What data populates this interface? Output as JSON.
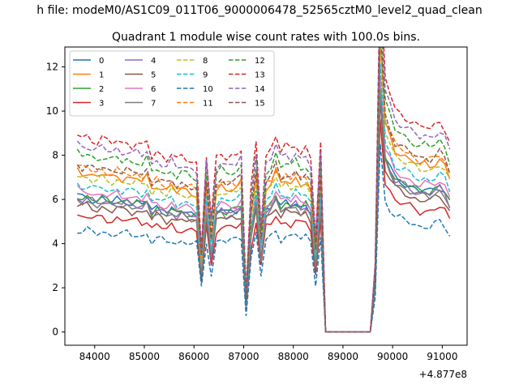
{
  "figure": {
    "suptitle": "h file: modeM0/AS1C09_011T06_9000006478_52565cztM0_level2_quad_clean"
  },
  "chart_data": {
    "type": "line",
    "title": "Quadrant 1 module wise count rates with 100.0s bins.",
    "xlabel": "",
    "ylabel": "",
    "x_offset_label": "+4.877e8",
    "xlim": [
      83400,
      91500
    ],
    "ylim": [
      -0.6,
      12.9
    ],
    "xticks": [
      84000,
      85000,
      86000,
      87000,
      88000,
      89000,
      90000,
      91000
    ],
    "yticks": [
      0,
      2,
      4,
      6,
      8,
      10,
      12
    ],
    "grid": false,
    "legend": {
      "placement": "top-left",
      "columns": 4
    },
    "x": [
      83650,
      83750,
      83850,
      83950,
      84050,
      84150,
      84250,
      84350,
      84450,
      84550,
      84650,
      84750,
      84850,
      84950,
      85050,
      85150,
      85250,
      85350,
      85450,
      85550,
      85650,
      85750,
      85850,
      85950,
      86050,
      86150,
      86250,
      86350,
      86450,
      86550,
      86650,
      86750,
      86850,
      86950,
      87050,
      87150,
      87250,
      87350,
      87450,
      87550,
      87650,
      87750,
      87850,
      87950,
      88050,
      88150,
      88250,
      88350,
      88450,
      88550,
      88650,
      88750,
      88850,
      88950,
      89050,
      89150,
      89250,
      89350,
      89450,
      89550,
      89650,
      89750,
      89850,
      89950,
      90050,
      90150,
      90250,
      90350,
      90450,
      90550,
      90650,
      90750,
      90850,
      90950,
      91050,
      91150
    ],
    "base_profile": [
      5.15,
      5.05,
      5.1,
      5.0,
      4.95,
      5.05,
      4.95,
      4.9,
      5.0,
      4.9,
      4.95,
      4.85,
      4.9,
      4.8,
      4.95,
      4.55,
      4.7,
      4.6,
      4.5,
      4.65,
      4.45,
      4.55,
      4.5,
      4.45,
      4.4,
      2.2,
      4.6,
      2.9,
      4.5,
      4.65,
      4.55,
      4.6,
      4.6,
      4.75,
      1.0,
      3.7,
      4.95,
      2.85,
      4.6,
      4.75,
      5.1,
      4.7,
      4.85,
      4.75,
      4.9,
      4.7,
      4.8,
      4.5,
      2.5,
      4.9,
      0,
      0,
      0,
      0,
      0,
      0,
      0,
      0,
      0,
      0,
      1.8,
      9.4,
      6.6,
      6.2,
      5.8,
      5.7,
      5.6,
      5.5,
      5.4,
      5.3,
      5.35,
      5.3,
      5.4,
      5.5,
      5.3,
      4.9
    ],
    "series": [
      {
        "name": "0",
        "color": "#1f77b4",
        "dash": "solid",
        "scale": 1.2
      },
      {
        "name": "1",
        "color": "#ff7f0e",
        "dash": "solid",
        "scale": 1.42
      },
      {
        "name": "2",
        "color": "#2ca02c",
        "dash": "solid",
        "scale": 1.2
      },
      {
        "name": "3",
        "color": "#d62728",
        "dash": "solid",
        "scale": 1.03
      },
      {
        "name": "4",
        "color": "#9467bd",
        "dash": "solid",
        "scale": 1.18
      },
      {
        "name": "5",
        "color": "#8c564b",
        "dash": "solid",
        "scale": 1.12
      },
      {
        "name": "6",
        "color": "#e377c2",
        "dash": "solid",
        "scale": 1.25
      },
      {
        "name": "7",
        "color": "#7f7f7f",
        "dash": "solid",
        "scale": 1.16
      },
      {
        "name": "8",
        "color": "#bcbd22",
        "dash": "dashed",
        "scale": 1.38
      },
      {
        "name": "9",
        "color": "#17becf",
        "dash": "dashed",
        "scale": 1.3
      },
      {
        "name": "10",
        "color": "#1f77b4",
        "dash": "dashed",
        "scale": 0.9
      },
      {
        "name": "11",
        "color": "#ff7f0e",
        "dash": "dashed",
        "scale": 1.46
      },
      {
        "name": "12",
        "color": "#2ca02c",
        "dash": "dashed",
        "scale": 1.58
      },
      {
        "name": "13",
        "color": "#d62728",
        "dash": "dashed",
        "scale": 1.74
      },
      {
        "name": "14",
        "color": "#9467bd",
        "dash": "dashed",
        "scale": 1.66
      },
      {
        "name": "15",
        "color": "#8c564b",
        "dash": "dashed",
        "scale": 1.48
      }
    ]
  }
}
